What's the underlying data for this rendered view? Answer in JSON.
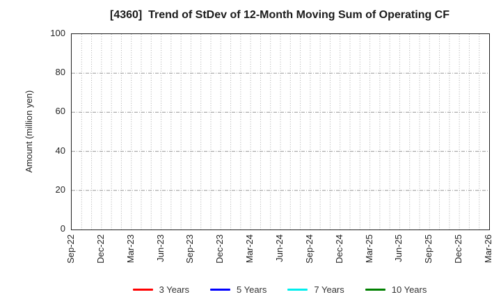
{
  "figure": {
    "background": "#ffffff"
  },
  "chart_data": {
    "type": "line",
    "title": "[4360]  Trend of StDev of 12-Month Moving Sum of Operating CF",
    "xlabel": "",
    "ylabel": "Amount (million yen)",
    "ylim": [
      0,
      100
    ],
    "y_ticks": [
      0,
      20,
      40,
      60,
      80,
      100
    ],
    "x_ticks": [
      "Sep-22",
      "Dec-22",
      "Mar-23",
      "Jun-23",
      "Sep-23",
      "Dec-23",
      "Mar-24",
      "Jun-24",
      "Sep-24",
      "Dec-24",
      "Mar-25",
      "Jun-25",
      "Sep-25",
      "Dec-25",
      "Mar-26"
    ],
    "x_range_months": 42,
    "x_tick_interval_months": 3,
    "x_minor_gridline_interval_months": 1,
    "grid": true,
    "legend_position": "bottom-center",
    "series": [
      {
        "name": "3 Years",
        "color": "#ff0000",
        "values": []
      },
      {
        "name": "5 Years",
        "color": "#0000ff",
        "values": []
      },
      {
        "name": "7 Years",
        "color": "#00eeee",
        "values": []
      },
      {
        "name": "10 Years",
        "color": "#008000",
        "values": []
      }
    ]
  },
  "colors": {
    "axis_frame": "#1f1f1f",
    "grid_minor_vertical": "#aaaaaa",
    "grid_major_horizontal": "#999999",
    "title_text": "#1a1a1a",
    "tick_text": "#222222",
    "legend_text": "#333333"
  }
}
